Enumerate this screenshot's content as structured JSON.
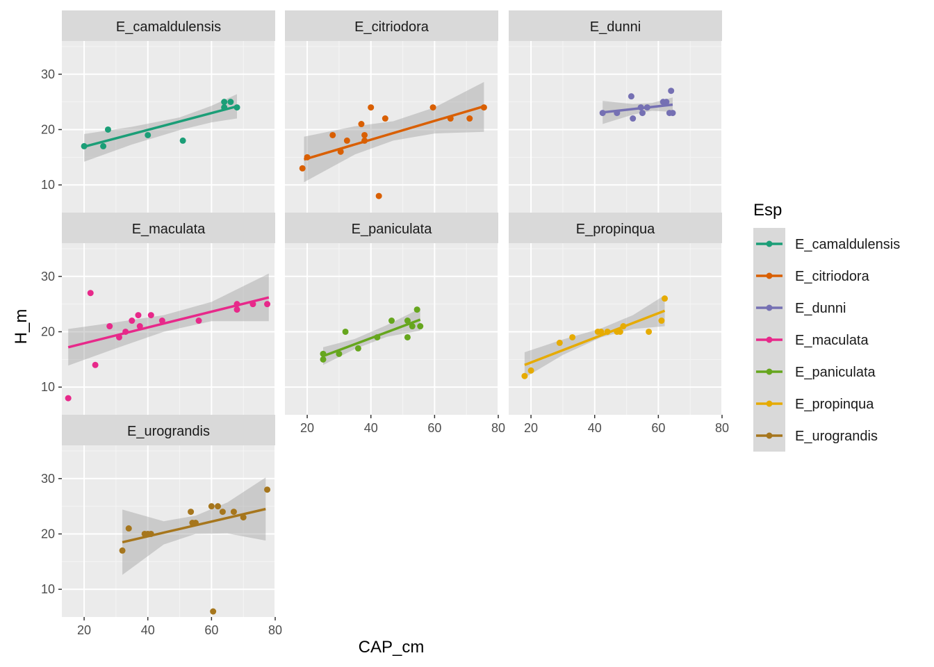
{
  "chart_data": {
    "type": "scatter",
    "facet_by": "Esp",
    "xlabel": "CAP_cm",
    "ylabel": "H_m",
    "xlim": [
      13,
      80
    ],
    "ylim": [
      5,
      36
    ],
    "x_ticks": [
      20,
      40,
      60,
      80
    ],
    "y_ticks": [
      10,
      20,
      30
    ],
    "grid": true,
    "smoothing": "linear regression with confidence band",
    "legend": {
      "title": "Esp",
      "placement": "right",
      "entries": [
        "E_camaldulensis",
        "E_citriodora",
        "E_dunni",
        "E_maculata",
        "E_paniculata",
        "E_propinqua",
        "E_urograndis"
      ]
    },
    "series": [
      {
        "name": "E_camaldulensis",
        "color": "#1b9e77",
        "points": [
          [
            20,
            17
          ],
          [
            26,
            17
          ],
          [
            27.5,
            20
          ],
          [
            40,
            19
          ],
          [
            51,
            18
          ],
          [
            64,
            24
          ],
          [
            64,
            25
          ],
          [
            66,
            25
          ],
          [
            68,
            24
          ]
        ],
        "fit": {
          "x": [
            20,
            68
          ],
          "y": [
            16.9,
            24.2
          ]
        },
        "band": {
          "x": [
            20,
            35,
            50,
            60,
            68
          ],
          "lower": [
            14.2,
            17.3,
            19.9,
            21.3,
            22.0
          ],
          "upper": [
            19.2,
            20.5,
            22.2,
            24.3,
            26.4
          ]
        }
      },
      {
        "name": "E_citriodora",
        "color": "#d95f02",
        "points": [
          [
            18.5,
            13
          ],
          [
            20,
            15
          ],
          [
            28,
            19
          ],
          [
            30.5,
            16
          ],
          [
            32.5,
            18
          ],
          [
            37,
            21
          ],
          [
            38,
            19
          ],
          [
            38,
            18
          ],
          [
            40,
            24
          ],
          [
            42.5,
            8
          ],
          [
            44.5,
            22
          ],
          [
            59.5,
            24
          ],
          [
            65,
            22
          ],
          [
            71,
            22
          ],
          [
            75.5,
            24
          ]
        ],
        "fit": {
          "x": [
            19,
            75.5
          ],
          "y": [
            14.6,
            24.2
          ]
        },
        "band": {
          "x": [
            19,
            35,
            47,
            60,
            75.5
          ],
          "lower": [
            10.5,
            15.5,
            18.0,
            19.3,
            19.6
          ],
          "upper": [
            18.7,
            20.6,
            21.5,
            24.0,
            28.6
          ]
        }
      },
      {
        "name": "E_dunni",
        "color": "#7570b3",
        "points": [
          [
            42.5,
            23
          ],
          [
            47,
            23
          ],
          [
            51.5,
            26
          ],
          [
            52,
            22
          ],
          [
            54.5,
            24
          ],
          [
            55,
            23
          ],
          [
            56.5,
            24
          ],
          [
            61.5,
            25
          ],
          [
            62.5,
            25
          ],
          [
            63.5,
            23
          ],
          [
            64,
            27
          ],
          [
            64.5,
            23
          ]
        ],
        "fit": {
          "x": [
            42.5,
            64.5
          ],
          "y": [
            23.1,
            24.5
          ]
        },
        "band": {
          "x": [
            42.5,
            52,
            58,
            64.5
          ],
          "lower": [
            21.0,
            22.7,
            23.4,
            23.2
          ],
          "upper": [
            25.2,
            24.6,
            24.8,
            25.8
          ]
        }
      },
      {
        "name": "E_maculata",
        "color": "#e7298a",
        "points": [
          [
            15,
            8
          ],
          [
            22,
            27
          ],
          [
            23.5,
            14
          ],
          [
            28,
            21
          ],
          [
            31,
            19
          ],
          [
            33,
            20
          ],
          [
            35,
            22
          ],
          [
            37,
            23
          ],
          [
            37.5,
            21
          ],
          [
            41,
            23
          ],
          [
            44.5,
            22
          ],
          [
            56,
            22
          ],
          [
            68,
            25
          ],
          [
            68,
            24
          ],
          [
            73,
            25
          ],
          [
            77.5,
            25
          ]
        ],
        "fit": {
          "x": [
            15,
            78
          ],
          "y": [
            17.2,
            26.2
          ]
        },
        "band": {
          "x": [
            15,
            30,
            45,
            60,
            78
          ],
          "lower": [
            13.9,
            17.0,
            20.0,
            21.9,
            21.9
          ],
          "upper": [
            20.5,
            21.7,
            23.0,
            25.4,
            30.5
          ]
        }
      },
      {
        "name": "E_paniculata",
        "color": "#66a61e",
        "points": [
          [
            25,
            16
          ],
          [
            25,
            15
          ],
          [
            30,
            16
          ],
          [
            32,
            20
          ],
          [
            36,
            17
          ],
          [
            42,
            19
          ],
          [
            46.5,
            22
          ],
          [
            51.5,
            22
          ],
          [
            51.5,
            19
          ],
          [
            53,
            21
          ],
          [
            54.5,
            24
          ],
          [
            55.5,
            21
          ]
        ],
        "fit": {
          "x": [
            25,
            55.5
          ],
          "y": [
            15.6,
            22.2
          ]
        },
        "band": {
          "x": [
            25,
            35,
            45,
            55.5
          ],
          "lower": [
            14.0,
            16.9,
            19.1,
            20.2
          ],
          "upper": [
            17.2,
            18.7,
            21.2,
            24.2
          ]
        }
      },
      {
        "name": "E_propinqua",
        "color": "#e6ab02",
        "points": [
          [
            18,
            12
          ],
          [
            20,
            13
          ],
          [
            29,
            18
          ],
          [
            33,
            19
          ],
          [
            41,
            20
          ],
          [
            42,
            20
          ],
          [
            44,
            20
          ],
          [
            47,
            20
          ],
          [
            48,
            20
          ],
          [
            49,
            21
          ],
          [
            57,
            20
          ],
          [
            61,
            22
          ],
          [
            62,
            26
          ]
        ],
        "fit": {
          "x": [
            18,
            62
          ],
          "y": [
            14.0,
            23.8
          ]
        },
        "band": {
          "x": [
            18,
            30,
            42,
            52,
            62
          ],
          "lower": [
            11.7,
            15.8,
            19.0,
            20.5,
            21.0
          ],
          "upper": [
            16.3,
            18.6,
            20.6,
            23.0,
            26.6
          ]
        }
      },
      {
        "name": "E_urograndis",
        "color": "#a6761d",
        "points": [
          [
            32,
            17
          ],
          [
            34,
            21
          ],
          [
            39,
            20
          ],
          [
            40,
            20
          ],
          [
            41,
            20
          ],
          [
            53.5,
            24
          ],
          [
            54,
            22
          ],
          [
            55,
            22
          ],
          [
            60,
            25
          ],
          [
            60.5,
            6
          ],
          [
            62,
            25
          ],
          [
            63.5,
            24
          ],
          [
            67,
            24
          ],
          [
            70,
            23
          ],
          [
            77.5,
            28
          ]
        ],
        "fit": {
          "x": [
            32,
            77
          ],
          "y": [
            18.5,
            24.5
          ]
        },
        "band": {
          "x": [
            32,
            45,
            55,
            65,
            77
          ],
          "lower": [
            12.6,
            18.1,
            20.0,
            20.1,
            18.8
          ],
          "upper": [
            24.4,
            22.3,
            23.3,
            25.7,
            30.2
          ]
        }
      }
    ]
  }
}
